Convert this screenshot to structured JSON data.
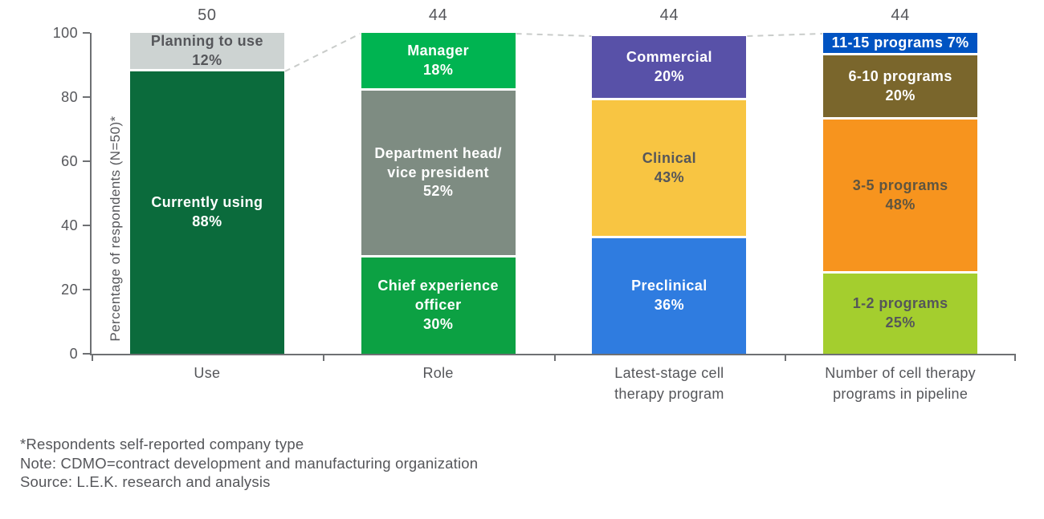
{
  "chart_data": {
    "type": "bar",
    "stacked": true,
    "title": "",
    "xlabel": "",
    "ylabel": "Percentage of respondents (N=50)*",
    "ylim": [
      0,
      100
    ],
    "yticks": [
      0,
      20,
      40,
      60,
      80,
      100
    ],
    "grid": false,
    "legend": "none (labels inside segments)",
    "axis_color": "#6E7073",
    "text_color": "#55565A",
    "connector_color": "#C9CCCA",
    "categories": [
      {
        "label": "Use",
        "n": "50",
        "segments": [
          {
            "name": "Currently using",
            "value": 88,
            "color": "#0B6B3C",
            "text_color": "#FFFFFF"
          },
          {
            "name": "Planning to use",
            "value": 12,
            "color": "#CDD3D2",
            "text_color": "#55565A"
          }
        ]
      },
      {
        "label": "Role",
        "n": "44",
        "segments": [
          {
            "name": "Chief experience officer",
            "value": 30,
            "color": "#0CA143",
            "text_color": "#FFFFFF"
          },
          {
            "name": "Department head/\nvice president",
            "value": 52,
            "color": "#7E8C82",
            "text_color": "#FFFFFF"
          },
          {
            "name": "Manager",
            "value": 18,
            "color": "#00B451",
            "text_color": "#FFFFFF"
          }
        ]
      },
      {
        "label": "Latest-stage cell\ntherapy program",
        "n": "44",
        "segments": [
          {
            "name": "Preclinical",
            "value": 36,
            "color": "#2F7CE0",
            "text_color": "#FFFFFF"
          },
          {
            "name": "Clinical",
            "value": 43,
            "color": "#F8C542",
            "text_color": "#55565A"
          },
          {
            "name": "Commercial",
            "value": 20,
            "color": "#5851A8",
            "text_color": "#FFFFFF"
          }
        ]
      },
      {
        "label": "Number of cell therapy\nprograms in pipeline",
        "n": "44",
        "segments": [
          {
            "name": "1-2 programs",
            "value": 25,
            "color": "#A4CE2E",
            "text_color": "#55565A"
          },
          {
            "name": "3-5 programs",
            "value": 48,
            "color": "#F7941E",
            "text_color": "#5E5540"
          },
          {
            "name": "6-10 programs",
            "value": 20,
            "color": "#7A662C",
            "text_color": "#FFFFFF"
          },
          {
            "name": "11-15 programs",
            "value": 7,
            "color": "#0053C2",
            "text_color": "#FFFFFF",
            "inline": true
          }
        ]
      }
    ]
  },
  "footnotes": [
    "*Respondents self-reported company type",
    "Note: CDMO=contract development and manufacturing organization",
    "Source: L.E.K. research and analysis"
  ]
}
